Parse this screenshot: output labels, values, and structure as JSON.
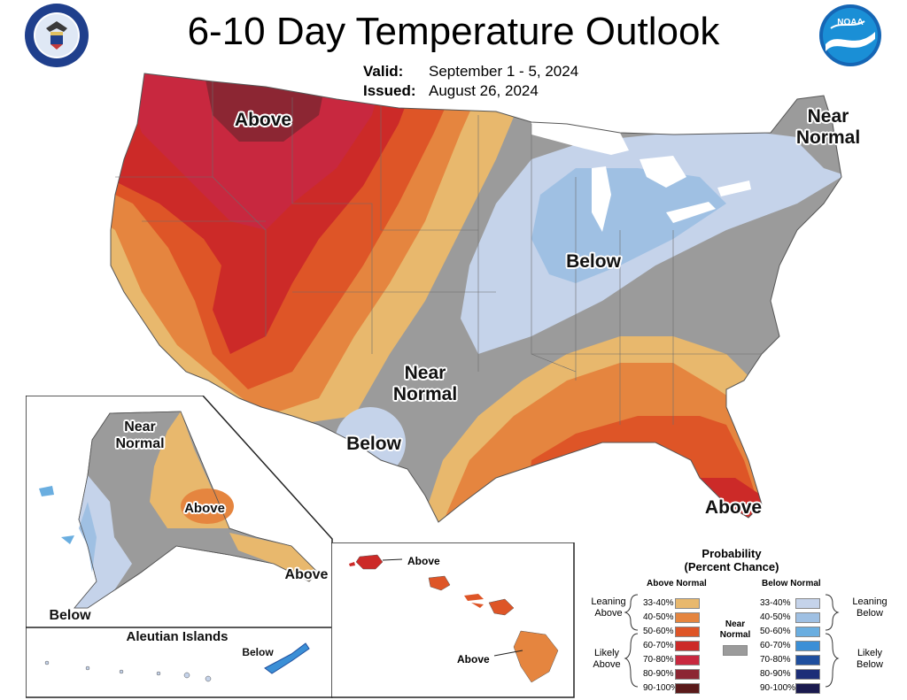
{
  "title": "6-10 Day Temperature Outlook",
  "valid_label": "Valid:",
  "valid_value": "September 1 - 5, 2024",
  "issued_label": "Issued:",
  "issued_value": "August 26, 2024",
  "map_labels": {
    "conus_above": "Above",
    "conus_below": "Below",
    "conus_near_normal_central": "Near\nNormal",
    "conus_near_normal_ne": "Near\nNormal",
    "texas_below": "Below",
    "florida_above": "Above",
    "alaska_near_normal": "Near\nNormal",
    "alaska_above": "Above",
    "alaska_above_se": "Above",
    "alaska_below": "Below",
    "aleutian_title": "Aleutian Islands",
    "aleutian_below": "Below",
    "hawaii_above_kauai": "Above",
    "hawaii_above_big_island": "Above"
  },
  "legend": {
    "title": "Probability\n(Percent Chance)",
    "above_header": "Above Normal",
    "below_header": "Below Normal",
    "near_normal": "Near\nNormal",
    "leaning_above": "Leaning\nAbove",
    "likely_above": "Likely\nAbove",
    "leaning_below": "Leaning\nBelow",
    "likely_below": "Likely\nBelow",
    "above_items": [
      {
        "label": "33-40%",
        "color": "#e8b86d"
      },
      {
        "label": "40-50%",
        "color": "#e5853f"
      },
      {
        "label": "50-60%",
        "color": "#de5527"
      },
      {
        "label": "60-70%",
        "color": "#cc2a28"
      },
      {
        "label": "70-80%",
        "color": "#c8283f"
      },
      {
        "label": "80-90%",
        "color": "#8c2633"
      },
      {
        "label": "90-100%",
        "color": "#5a1a1a"
      }
    ],
    "below_items": [
      {
        "label": "33-40%",
        "color": "#c5d3ea"
      },
      {
        "label": "40-50%",
        "color": "#9fc0e3"
      },
      {
        "label": "50-60%",
        "color": "#6aaee0"
      },
      {
        "label": "60-70%",
        "color": "#3b8fd6"
      },
      {
        "label": "70-80%",
        "color": "#1f4f9e"
      },
      {
        "label": "80-90%",
        "color": "#1c2e78"
      },
      {
        "label": "90-100%",
        "color": "#1a1a4e"
      }
    ],
    "near_normal_color": "#9b9b9b"
  },
  "colors": {
    "near_normal": "#9b9b9b",
    "lake": "#ffffff"
  }
}
